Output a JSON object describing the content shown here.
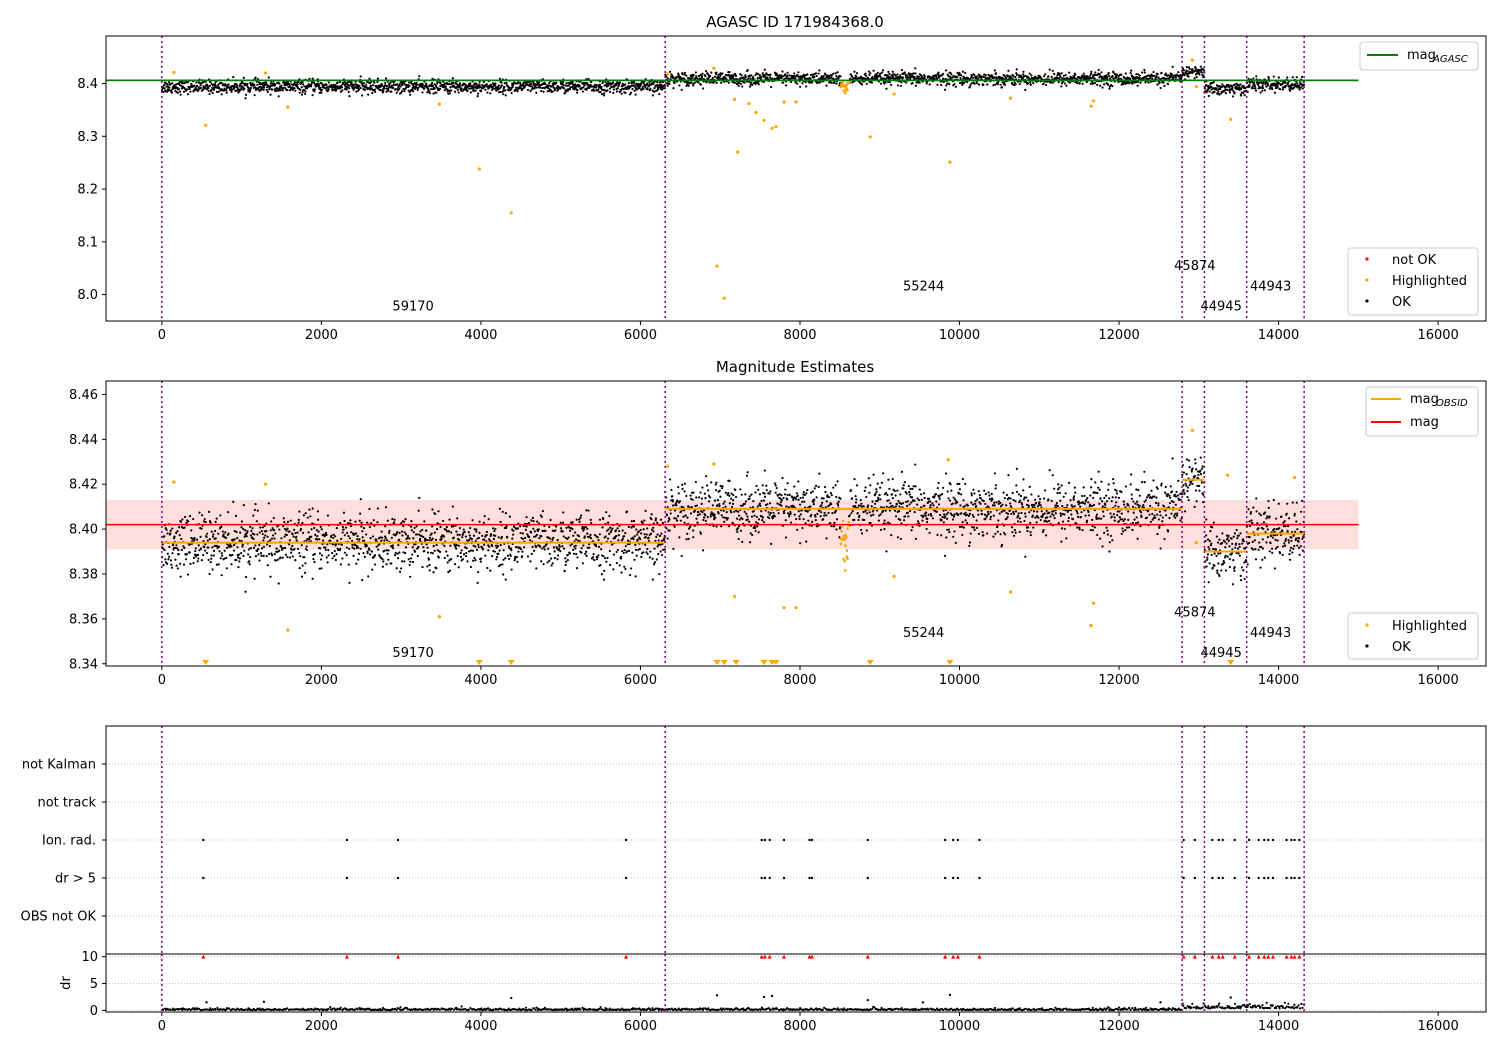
{
  "chart_data": [
    {
      "type": "scatter",
      "panel": "agasc",
      "title": "AGASC ID 171984368.0",
      "xlabel": "",
      "ylabel": "",
      "xlim": [
        -700,
        16600
      ],
      "ylim": [
        7.95,
        8.49
      ],
      "x_ticks": [
        0,
        2000,
        4000,
        6000,
        8000,
        10000,
        12000,
        14000,
        16000
      ],
      "x_tick_labels": [
        "0",
        "2000",
        "4000",
        "6000",
        "8000",
        "10000",
        "12000",
        "14000",
        "16000"
      ],
      "y_ticks": [
        8.0,
        8.1,
        8.2,
        8.3,
        8.4
      ],
      "y_tick_labels": [
        "8.0",
        "8.1",
        "8.2",
        "8.3",
        "8.4"
      ],
      "observation_boundaries": [
        0,
        6310,
        12790,
        13070,
        13600,
        14320
      ],
      "observation_labels": [
        {
          "text": "59170",
          "x": 3150,
          "y": 7.97
        },
        {
          "text": "55244",
          "x": 9550,
          "y": 8.008
        },
        {
          "text": "45874",
          "x": 12950,
          "y": 8.047
        },
        {
          "text": "44945",
          "x": 13280,
          "y": 7.97
        },
        {
          "text": "44943",
          "x": 13900,
          "y": 8.008
        }
      ],
      "segments": [
        {
          "start": 0,
          "end": 6310,
          "mean": 8.394,
          "spread": 0.009
        },
        {
          "start": 6310,
          "end": 12790,
          "mean": 8.409,
          "spread": 0.009
        },
        {
          "start": 12790,
          "end": 13070,
          "mean": 8.422,
          "spread": 0.008
        },
        {
          "start": 13070,
          "end": 13600,
          "mean": 8.39,
          "spread": 0.009
        },
        {
          "start": 13600,
          "end": 14320,
          "mean": 8.398,
          "spread": 0.009
        }
      ],
      "dip": {
        "x_start": 8480,
        "x_end": 8640,
        "depth": 0.02
      },
      "highlighted_points": [
        {
          "x": 150,
          "y": 8.421
        },
        {
          "x": 550,
          "y": 8.321
        },
        {
          "x": 1300,
          "y": 8.42
        },
        {
          "x": 1580,
          "y": 8.355
        },
        {
          "x": 3480,
          "y": 8.361
        },
        {
          "x": 3980,
          "y": 8.238
        },
        {
          "x": 4380,
          "y": 8.155
        },
        {
          "x": 6340,
          "y": 8.418
        },
        {
          "x": 6920,
          "y": 8.429
        },
        {
          "x": 6960,
          "y": 8.054
        },
        {
          "x": 7050,
          "y": 7.993
        },
        {
          "x": 7180,
          "y": 8.37
        },
        {
          "x": 7220,
          "y": 8.27
        },
        {
          "x": 7360,
          "y": 8.362
        },
        {
          "x": 7450,
          "y": 8.345
        },
        {
          "x": 7550,
          "y": 8.33
        },
        {
          "x": 7650,
          "y": 8.315
        },
        {
          "x": 7700,
          "y": 8.318
        },
        {
          "x": 7800,
          "y": 8.365
        },
        {
          "x": 7950,
          "y": 8.365
        },
        {
          "x": 8880,
          "y": 8.299
        },
        {
          "x": 9180,
          "y": 8.38
        },
        {
          "x": 9880,
          "y": 8.251
        },
        {
          "x": 10640,
          "y": 8.372
        },
        {
          "x": 11650,
          "y": 8.357
        },
        {
          "x": 11680,
          "y": 8.367
        },
        {
          "x": 13400,
          "y": 8.332
        },
        {
          "x": 12970,
          "y": 8.394
        },
        {
          "x": 12920,
          "y": 8.444
        }
      ],
      "lines": [
        {
          "name": "mag_AGASC",
          "color": "#008000",
          "x": [
            -700,
            15000
          ],
          "y": [
            8.406,
            8.406
          ]
        }
      ],
      "legend_top": {
        "placement": "upper-right",
        "entries": [
          {
            "label": "mag",
            "sub": "AGASC",
            "color": "#008000",
            "marker": "line"
          }
        ]
      },
      "legend_bottom": {
        "placement": "lower-right",
        "entries": [
          {
            "label": "not OK",
            "color": "#ff0000",
            "marker": "dot"
          },
          {
            "label": "Highlighted",
            "color": "#ffa500",
            "marker": "dot"
          },
          {
            "label": "OK",
            "color": "#000000",
            "marker": "dot"
          }
        ]
      }
    },
    {
      "type": "scatter",
      "panel": "estimates",
      "title": "Magnitude Estimates",
      "xlabel": "",
      "ylabel": "",
      "xlim": [
        -700,
        16600
      ],
      "ylim": [
        8.339,
        8.466
      ],
      "x_ticks": [
        0,
        2000,
        4000,
        6000,
        8000,
        10000,
        12000,
        14000,
        16000
      ],
      "x_tick_labels": [
        "0",
        "2000",
        "4000",
        "6000",
        "8000",
        "10000",
        "12000",
        "14000",
        "16000"
      ],
      "y_ticks": [
        8.34,
        8.36,
        8.38,
        8.4,
        8.42,
        8.44,
        8.46
      ],
      "y_tick_labels": [
        "8.34",
        "8.36",
        "8.38",
        "8.40",
        "8.42",
        "8.44",
        "8.46"
      ],
      "observation_boundaries": [
        0,
        6310,
        12790,
        13070,
        13600,
        14320
      ],
      "observation_labels": [
        {
          "text": "59170",
          "x": 3150,
          "y": 8.343
        },
        {
          "text": "55244",
          "x": 9550,
          "y": 8.352
        },
        {
          "text": "45874",
          "x": 12950,
          "y": 8.361
        },
        {
          "text": "44945",
          "x": 13280,
          "y": 8.343
        },
        {
          "text": "44943",
          "x": 13900,
          "y": 8.352
        }
      ],
      "mag": 8.402,
      "mag_band": [
        8.391,
        8.413
      ],
      "mag_obsid": [
        {
          "start": 0,
          "end": 6310,
          "y": 8.394
        },
        {
          "start": 6310,
          "end": 12790,
          "y": 8.409
        },
        {
          "start": 12790,
          "end": 13070,
          "y": 8.422
        },
        {
          "start": 13070,
          "end": 13600,
          "y": 8.39
        },
        {
          "start": 13600,
          "end": 14320,
          "y": 8.398
        }
      ],
      "highlighted_points": [
        {
          "x": 150,
          "y": 8.421
        },
        {
          "x": 1300,
          "y": 8.42
        },
        {
          "x": 1580,
          "y": 8.355
        },
        {
          "x": 3480,
          "y": 8.361
        },
        {
          "x": 6340,
          "y": 8.428
        },
        {
          "x": 6920,
          "y": 8.429
        },
        {
          "x": 7180,
          "y": 8.37
        },
        {
          "x": 7800,
          "y": 8.365
        },
        {
          "x": 7950,
          "y": 8.365
        },
        {
          "x": 9180,
          "y": 8.379
        },
        {
          "x": 9860,
          "y": 8.431
        },
        {
          "x": 10640,
          "y": 8.372
        },
        {
          "x": 11650,
          "y": 8.357
        },
        {
          "x": 11680,
          "y": 8.367
        },
        {
          "x": 12920,
          "y": 8.444
        },
        {
          "x": 12970,
          "y": 8.394
        },
        {
          "x": 13360,
          "y": 8.424
        },
        {
          "x": 14200,
          "y": 8.423
        }
      ],
      "below_range_markers_x": [
        550,
        3980,
        4380,
        6960,
        7050,
        7200,
        7550,
        7650,
        7700,
        8880,
        9880,
        13400
      ],
      "legend_top": {
        "placement": "upper-right",
        "entries": [
          {
            "label": "mag",
            "sub": "OBSID",
            "color": "#ffa500",
            "marker": "line"
          },
          {
            "label": "mag",
            "sub": "",
            "color": "#ff0000",
            "marker": "line"
          }
        ]
      },
      "legend_bottom": {
        "placement": "lower-right",
        "entries": [
          {
            "label": "Highlighted",
            "color": "#ffa500",
            "marker": "dot"
          },
          {
            "label": "OK",
            "color": "#000000",
            "marker": "dot"
          }
        ]
      }
    },
    {
      "type": "scatter",
      "panel": "flags",
      "title": "",
      "xlim": [
        -700,
        16600
      ],
      "rows": [
        "not Kalman",
        "not track",
        "Ion. rad.",
        "dr > 5",
        "OBS not OK"
      ],
      "observation_boundaries": [
        0,
        6310,
        12790,
        13070,
        13600,
        14320
      ],
      "flag_x": [
        520,
        2320,
        2960,
        5820,
        7520,
        7560,
        7620,
        7800,
        8120,
        8150,
        8850,
        9820,
        9920,
        9980,
        10250,
        12810,
        12950,
        13170,
        13250,
        13300,
        13450,
        13630,
        13750,
        13820,
        13870,
        13930,
        14100,
        14160,
        14200,
        14260
      ],
      "flag_rows": [
        "Ion. rad.",
        "dr > 5"
      ],
      "x_ticks": [
        0,
        2000,
        4000,
        6000,
        8000,
        10000,
        12000,
        14000,
        16000
      ],
      "x_tick_labels": [
        "0",
        "2000",
        "4000",
        "6000",
        "8000",
        "10000",
        "12000",
        "14000",
        "16000"
      ]
    },
    {
      "type": "scatter",
      "panel": "dr",
      "title": "",
      "ylabel": "dr",
      "xlim": [
        -700,
        16600
      ],
      "ylim": [
        -0.3,
        10.5
      ],
      "y_ticks": [
        0,
        5,
        10
      ],
      "y_tick_labels": [
        "0",
        "5",
        "10"
      ],
      "x_ticks": [
        0,
        2000,
        4000,
        6000,
        8000,
        10000,
        12000,
        14000,
        16000
      ],
      "x_tick_labels": [
        "0",
        "2000",
        "4000",
        "6000",
        "8000",
        "10000",
        "12000",
        "14000",
        "16000"
      ],
      "observation_boundaries": [
        0,
        6310,
        12790,
        13070,
        13600,
        14320
      ],
      "clipped_marker_y": 10,
      "outliers": [
        {
          "x": 560,
          "y": 1.5
        },
        {
          "x": 1280,
          "y": 1.6
        },
        {
          "x": 4380,
          "y": 2.3
        },
        {
          "x": 6960,
          "y": 2.8
        },
        {
          "x": 7550,
          "y": 2.5
        },
        {
          "x": 7650,
          "y": 2.7
        },
        {
          "x": 8850,
          "y": 1.9
        },
        {
          "x": 9880,
          "y": 2.9
        },
        {
          "x": 13400,
          "y": 2.4
        },
        {
          "x": 12520,
          "y": 1.5
        },
        {
          "x": 9540,
          "y": 1.5
        }
      ]
    }
  ],
  "colors": {
    "ok": "#000000",
    "highlighted": "#ffa500",
    "not_ok": "#ff0000",
    "agasc_line": "#008000",
    "obs_boundary": "#800080",
    "mag_band": "#ffdede"
  }
}
